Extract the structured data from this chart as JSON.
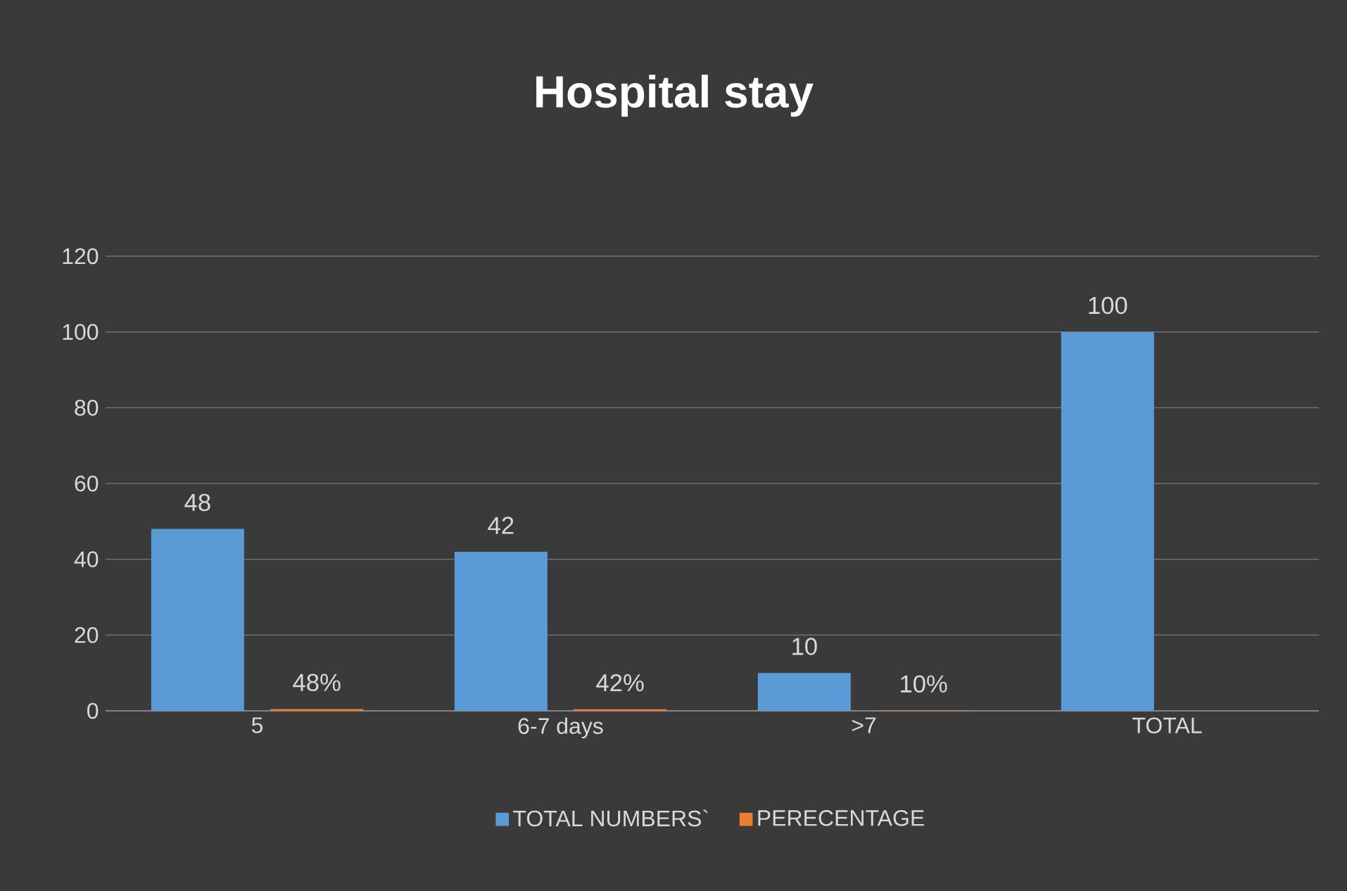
{
  "chart_data": {
    "type": "bar",
    "title": "Hospital stay",
    "categories": [
      "5",
      "6-7 days",
      ">7",
      "TOTAL"
    ],
    "series": [
      {
        "name": "TOTAL NUMBERS`",
        "color": "#5b9bd5",
        "values": [
          48,
          42,
          10,
          100
        ],
        "value_labels": [
          "48",
          "42",
          "10",
          "100"
        ]
      },
      {
        "name": "PERECENTAGE",
        "color": "#ed7d31",
        "values": [
          0.48,
          0.42,
          0.1,
          null
        ],
        "value_labels": [
          "48%",
          "42%",
          "10%",
          null
        ]
      }
    ],
    "ylim": [
      0,
      120
    ],
    "yticks": [
      0,
      20,
      40,
      60,
      80,
      100,
      120
    ],
    "grid": "y",
    "legend": "bottom"
  }
}
